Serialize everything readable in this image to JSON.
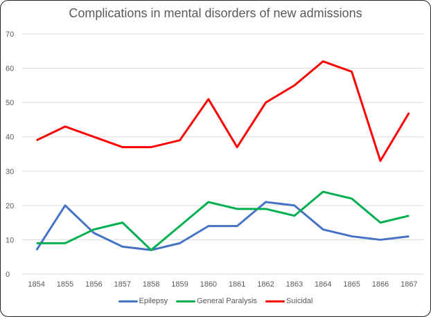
{
  "chart_data": {
    "type": "line",
    "title": "Complications in mental disorders of new admissions",
    "xlabel": "",
    "ylabel": "",
    "categories": [
      "1854",
      "1855",
      "1856",
      "1857",
      "1858",
      "1859",
      "1860",
      "1861",
      "1862",
      "1863",
      "1864",
      "1865",
      "1866",
      "1867"
    ],
    "ylim": [
      0,
      70
    ],
    "yticks": [
      "0",
      "10",
      "20",
      "30",
      "40",
      "50",
      "60",
      "70"
    ],
    "grid": true,
    "legend_position": "bottom",
    "series": [
      {
        "name": "Epilepsy",
        "color": "#4472C4",
        "values": [
          7,
          20,
          12,
          8,
          7,
          9,
          14,
          14,
          21,
          20,
          13,
          11,
          10,
          11
        ]
      },
      {
        "name": "General Paralysis",
        "color": "#00B050",
        "values": [
          9,
          9,
          13,
          15,
          7,
          14,
          21,
          19,
          19,
          17,
          24,
          22,
          15,
          17
        ]
      },
      {
        "name": "Suicidal",
        "color": "#FF0000",
        "values": [
          39,
          43,
          40,
          37,
          37,
          39,
          51,
          37,
          50,
          55,
          62,
          59,
          33,
          47
        ]
      }
    ]
  }
}
